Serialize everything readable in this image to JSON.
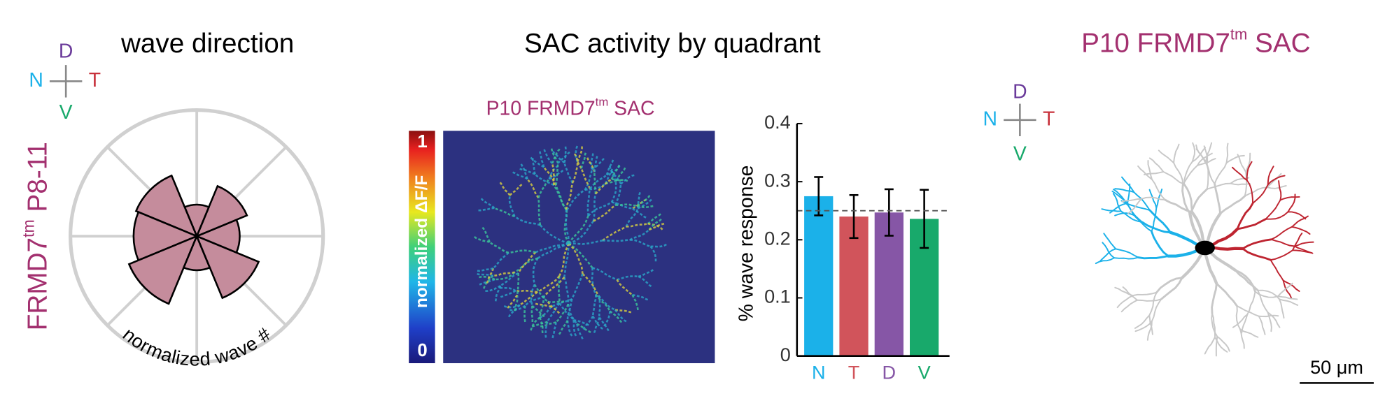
{
  "chart_data": [
    {
      "type": "polar_bar",
      "title": "wave direction",
      "side_label_parts": [
        "FRMD7",
        "tm",
        " P8-11"
      ],
      "annotation": "normalized wave #",
      "compass": {
        "N": "N",
        "T": "T",
        "D": "D",
        "V": "V"
      },
      "values": [
        0.34,
        0.43,
        0.25,
        0.52,
        0.5,
        0.58,
        0.27,
        0.53
      ],
      "color": "#c58c9c",
      "rlim": [
        0,
        1
      ]
    },
    {
      "type": "bar",
      "title": "SAC activity by quadrant",
      "categories": [
        "N",
        "T",
        "D",
        "V"
      ],
      "values": [
        0.275,
        0.24,
        0.247,
        0.236
      ],
      "errors": [
        0.033,
        0.037,
        0.04,
        0.05
      ],
      "colors": [
        "#1bb1e9",
        "#d1545b",
        "#8656a6",
        "#18a96b"
      ],
      "ylabel": "% wave response",
      "ylim": [
        0,
        0.4
      ],
      "yticks": [
        0,
        0.1,
        0.2,
        0.3,
        0.4
      ],
      "reference_line": 0.25
    }
  ],
  "heatmap": {
    "title_parts": [
      "P10 FRMD7",
      "tm",
      " SAC"
    ],
    "colorbar_label": "normalized ΔF/F",
    "colorbar_ticks": [
      0,
      1
    ]
  },
  "cell": {
    "title_parts": [
      "P10 FRMD7",
      "tm",
      " SAC"
    ],
    "compass": {
      "N": "N",
      "T": "T",
      "D": "D",
      "V": "V"
    },
    "scale_bar": "50 μm"
  }
}
